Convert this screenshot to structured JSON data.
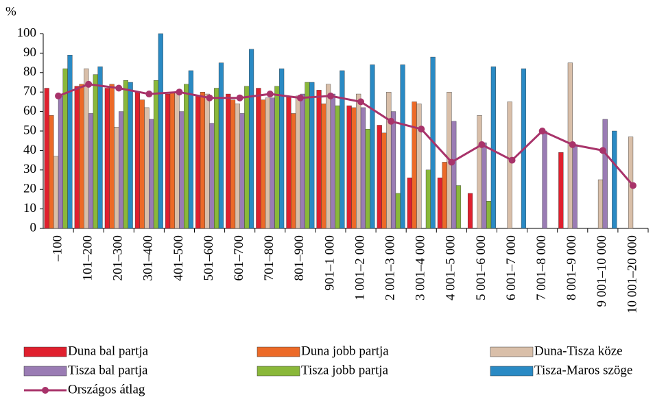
{
  "chart_data": {
    "type": "bar",
    "y_label": "%",
    "categories": [
      "–100",
      "101–200",
      "201–300",
      "301–400",
      "401–500",
      "501–600",
      "601–700",
      "701–800",
      "801–900",
      "901–1 000",
      "1 001–2 000",
      "2 001–3 000",
      "3 001–4 000",
      "4 001–5 000",
      "5 001–6 000",
      "6 001–7 000",
      "7 001–8 000",
      "8 001–9 000",
      "9 001–10 000",
      "10 001–20 000"
    ],
    "series": [
      {
        "name": "Duna bal partja",
        "color": "#e0202e",
        "values": [
          72,
          73,
          72,
          70,
          69,
          68,
          69,
          72,
          68,
          71,
          63,
          53,
          26,
          26,
          18,
          null,
          null,
          39,
          null,
          null
        ]
      },
      {
        "name": "Duna jobb partja",
        "color": "#ec6a28",
        "values": [
          58,
          74,
          74,
          66,
          70,
          70,
          66,
          66,
          59,
          64,
          62,
          49,
          65,
          34,
          null,
          null,
          null,
          null,
          null,
          null
        ]
      },
      {
        "name": "Duna-Tisza köze",
        "color": "#d9bfa9",
        "values": [
          37,
          82,
          52,
          62,
          70,
          69,
          64,
          67,
          68,
          74,
          69,
          70,
          64,
          70,
          58,
          65,
          null,
          85,
          25,
          47
        ]
      },
      {
        "name": "Tisza bal partja",
        "color": "#9a7cb4",
        "values": [
          68,
          59,
          60,
          56,
          60,
          54,
          59,
          67,
          69,
          69,
          62,
          60,
          null,
          55,
          44,
          null,
          50,
          43,
          56,
          null
        ]
      },
      {
        "name": "Tisza jobb partja",
        "color": "#8ab83a",
        "values": [
          82,
          79,
          76,
          76,
          74,
          72,
          73,
          73,
          75,
          63,
          51,
          18,
          30,
          22,
          14,
          null,
          null,
          null,
          null,
          null
        ]
      },
      {
        "name": "Tisza-Maros szöge",
        "color": "#2a8ac4",
        "values": [
          89,
          83,
          75,
          100,
          81,
          85,
          92,
          82,
          75,
          81,
          84,
          84,
          88,
          null,
          83,
          82,
          null,
          null,
          50,
          null
        ]
      },
      {
        "name": "Országos átlag",
        "color": "#a8336a",
        "type": "line",
        "values": [
          68,
          74,
          72,
          69,
          70,
          67,
          67,
          69,
          67,
          68,
          65,
          55,
          51,
          34,
          43,
          35,
          50,
          43,
          40,
          22
        ]
      }
    ],
    "ylim": [
      0,
      100
    ],
    "yticks": [
      0,
      10,
      20,
      30,
      40,
      50,
      60,
      70,
      80,
      90,
      100
    ]
  }
}
